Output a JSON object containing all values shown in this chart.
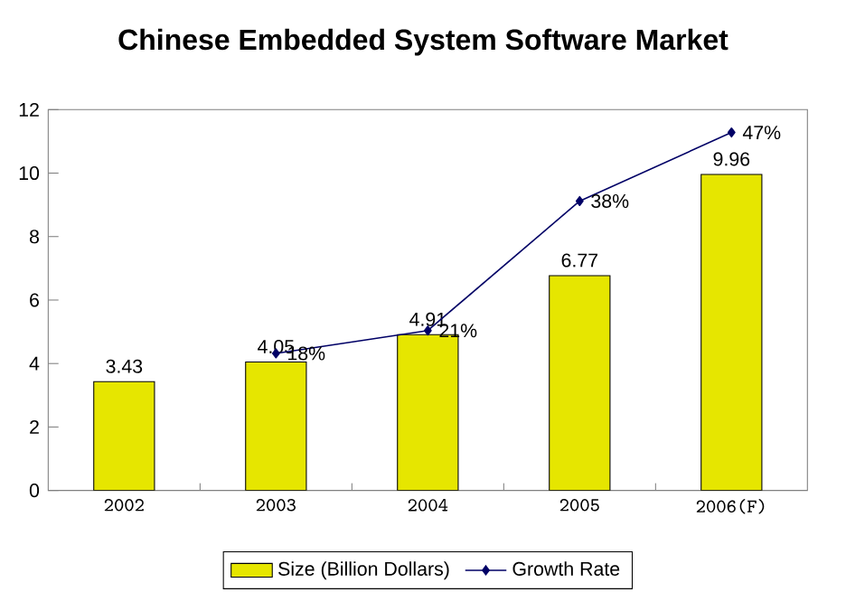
{
  "chart_data": {
    "type": "bar",
    "title": "Chinese Embedded System Software Market",
    "categories": [
      "2002",
      "2003",
      "2004",
      "2005",
      "2006(F)"
    ],
    "series": [
      {
        "name": "Size (Billion Dollars)",
        "color": "#e6e600",
        "values": [
          3.43,
          4.05,
          4.91,
          6.77,
          9.96
        ],
        "value_labels": [
          "3.43",
          "4.05",
          "4.91",
          "6.77",
          "9.96"
        ]
      },
      {
        "name": "Growth Rate",
        "type": "line",
        "axis": "y2",
        "color": "#000066",
        "marker": "diamond",
        "values": [
          null,
          18,
          21,
          38,
          47
        ],
        "value_labels": [
          null,
          "18%",
          "21%",
          "38%",
          "47%"
        ]
      }
    ],
    "ylim": [
      0,
      12
    ],
    "yticks": [
      0,
      2,
      4,
      6,
      8,
      10,
      12
    ],
    "y2lim": [
      0,
      50
    ],
    "tick_labels": "xy",
    "legend": "bottom",
    "grid": false
  }
}
